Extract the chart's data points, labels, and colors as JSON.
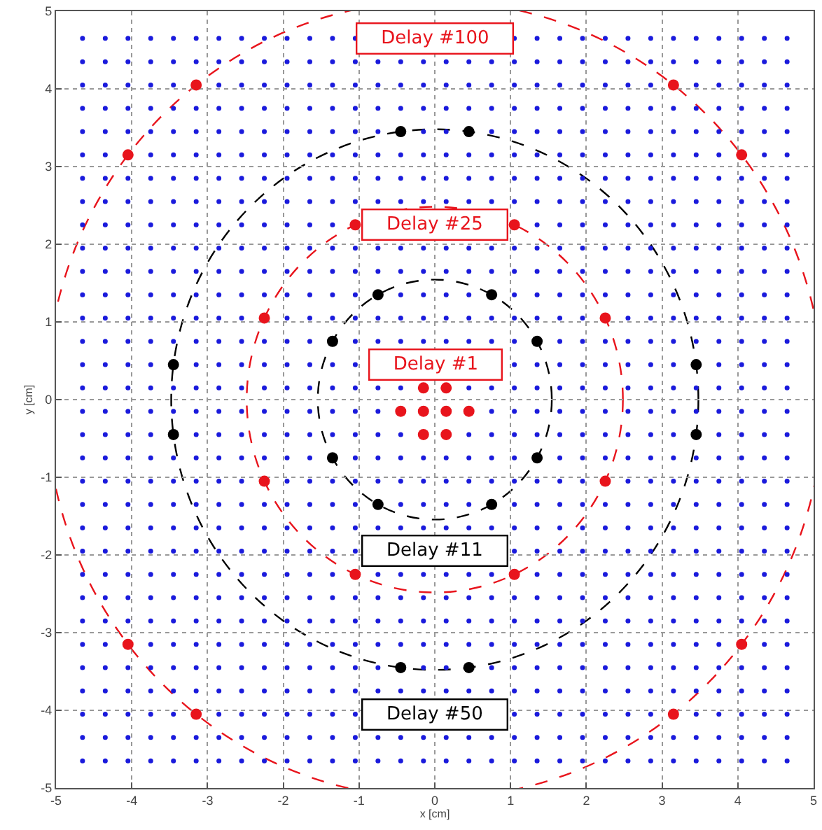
{
  "chart_data": {
    "type": "scatter",
    "xlabel": "x [cm]",
    "ylabel": "y [cm]",
    "xlim": [
      -5,
      5
    ],
    "ylim": [
      -5,
      5
    ],
    "xticks": [
      -5,
      -4,
      -3,
      -2,
      -1,
      0,
      1,
      2,
      3,
      4,
      5
    ],
    "yticks": [
      -5,
      -4,
      -3,
      -2,
      -1,
      0,
      1,
      2,
      3,
      4,
      5
    ],
    "grid": true,
    "marker": "circle",
    "annotations": [
      "Delay #1",
      "Delay #11",
      "Delay #25",
      "Delay #50",
      "Delay #100"
    ],
    "series": [
      {
        "type": "scatter",
        "color": "#1a1adc",
        "x": [
          -4.65,
          -4.35,
          -4.05,
          -3.75,
          -3.45,
          -3.15,
          -2.85,
          -2.55,
          -2.25,
          -1.95,
          -1.65,
          -1.35,
          -1.05,
          -0.75,
          -0.45,
          -0.15,
          0.15,
          0.45,
          0.75,
          1.05,
          1.35,
          1.65,
          1.95,
          2.25,
          2.55,
          2.85,
          3.15,
          3.45,
          3.75,
          4.05,
          4.35,
          4.65,
          -4.65,
          -4.35,
          -4.05,
          -3.75,
          -3.45,
          -3.15,
          -2.85,
          -2.55,
          -2.25,
          -1.95,
          -1.65,
          -1.35,
          -1.05,
          -0.75,
          -0.45,
          -0.15,
          0.15,
          0.45,
          0.75,
          1.05,
          1.35,
          1.65,
          1.95,
          2.25,
          2.55,
          2.85,
          3.15,
          3.45,
          3.75,
          4.05,
          4.35,
          4.65,
          -4.65,
          -4.35,
          -4.05,
          -3.75,
          -3.45,
          -3.15,
          -2.85,
          -2.55,
          -2.25,
          -1.95,
          -1.65,
          -1.35,
          -1.05,
          -0.75,
          -0.45,
          -0.15,
          0.15,
          0.45,
          0.75,
          1.05,
          1.35,
          1.65,
          1.95,
          2.25,
          2.55,
          2.85,
          3.15,
          3.45,
          3.75,
          4.05,
          4.35,
          4.65,
          -4.65,
          -4.35,
          -4.05,
          -3.75,
          -3.45,
          -3.15,
          -2.85,
          -2.55,
          -2.25,
          -1.95,
          -1.65,
          -1.35,
          -1.05,
          -0.75,
          -0.45,
          -0.15,
          0.15,
          0.45,
          0.75,
          1.05,
          1.35,
          1.65,
          1.95,
          2.25,
          2.55,
          2.85,
          3.15,
          3.45,
          3.75,
          4.05,
          4.35,
          4.65,
          -4.65,
          -4.35,
          -4.05,
          -3.75,
          -3.45,
          -3.15,
          -2.85,
          -2.55,
          -2.25,
          -1.95,
          -1.65,
          -1.35,
          -1.05,
          -0.75,
          -0.45,
          -0.15,
          0.15,
          0.45,
          0.75,
          1.05,
          1.35,
          1.65,
          1.95,
          2.25,
          2.55,
          2.85,
          3.15,
          3.45,
          3.75,
          4.05,
          4.35,
          4.65,
          -4.65,
          -4.35,
          -4.05,
          -3.75,
          -3.45,
          -3.15,
          -2.85,
          -2.55,
          -2.25,
          -1.95,
          -1.65,
          -1.35,
          -1.05,
          -0.75,
          -0.45,
          -0.15,
          0.15,
          0.45,
          0.75,
          1.05,
          1.35,
          1.65,
          1.95,
          2.25,
          2.55,
          2.85,
          3.15,
          3.45,
          3.75,
          4.05,
          4.35,
          4.65,
          -4.65,
          -4.35,
          -4.05,
          -3.75,
          -3.45,
          -3.15,
          -2.85,
          -2.55,
          -2.25,
          -1.95,
          -1.65,
          -1.35,
          -1.05,
          -0.75,
          -0.45,
          -0.15,
          0.15,
          0.45,
          0.75,
          1.05,
          1.35,
          1.65,
          1.95,
          2.25,
          2.55,
          2.85,
          3.15,
          3.45,
          3.75,
          4.05,
          4.35,
          4.65,
          -4.65,
          -4.35,
          -4.05,
          -3.75,
          -3.45,
          -3.15,
          -2.85,
          -2.55,
          -2.25,
          -1.95,
          -1.65,
          -1.35,
          -1.05,
          -0.75,
          -0.45,
          -0.15,
          0.15,
          0.45,
          0.75,
          1.05,
          1.35,
          1.65,
          1.95,
          2.25,
          2.55,
          2.85,
          3.15,
          3.45,
          3.75,
          4.05,
          4.35,
          4.65,
          -4.65,
          -4.35,
          -4.05,
          -3.75,
          -3.45,
          -3.15,
          -2.85,
          -2.55,
          -2.25,
          -1.95,
          -1.65,
          -1.35,
          -1.05,
          -0.75,
          -0.45,
          -0.15,
          0.15,
          0.45,
          0.75,
          1.05,
          1.35,
          1.65,
          1.95,
          2.25,
          2.55,
          2.85,
          3.15,
          3.45,
          3.75,
          4.05,
          4.35,
          4.65,
          -4.65,
          -4.35,
          -4.05,
          -3.75,
          -3.45,
          -3.15,
          -2.85,
          -2.55,
          -2.25,
          -1.95,
          -1.65,
          -1.35,
          -1.05,
          -0.75,
          -0.45,
          -0.15,
          0.15,
          0.45,
          0.75,
          1.05,
          1.35,
          1.65,
          1.95,
          2.25,
          2.55,
          2.85,
          3.15,
          3.45,
          3.75,
          4.05,
          4.35,
          4.65,
          -4.65,
          -4.35,
          -4.05,
          -3.75,
          -3.45,
          -3.15,
          -2.85,
          -2.55,
          -2.25,
          -1.95,
          -1.65,
          -1.35,
          -1.05,
          -0.75,
          -0.45,
          -0.15,
          0.15,
          0.45,
          0.75,
          1.05,
          1.35,
          1.65,
          1.95,
          2.25,
          2.55,
          2.85,
          3.15,
          3.45,
          3.75,
          4.05,
          4.35,
          4.65,
          -4.65,
          -4.35,
          -4.05,
          -3.75,
          -3.45,
          -3.15,
          -2.85,
          -2.55,
          -2.25,
          -1.95,
          -1.65,
          -1.35,
          -1.05,
          -0.75,
          -0.45,
          -0.15,
          0.15,
          0.45,
          0.75,
          1.05,
          1.35,
          1.65,
          1.95,
          2.25,
          2.55,
          2.85,
          3.15,
          3.45,
          3.75,
          4.05,
          4.35,
          4.65,
          -4.65,
          -4.35,
          -4.05,
          -3.75,
          -3.45,
          -3.15,
          -2.85,
          -2.55,
          -2.25,
          -1.95,
          -1.65,
          -1.35,
          -1.05,
          -0.75,
          -0.45,
          -0.15,
          0.15,
          0.45,
          0.75,
          1.05,
          1.35,
          1.65,
          1.95,
          2.25,
          2.55,
          2.85,
          3.15,
          3.45,
          3.75,
          4.05,
          4.35,
          4.65,
          -4.65,
          -4.35,
          -4.05,
          -3.75,
          -3.45,
          -3.15,
          -2.85,
          -2.55,
          -2.25,
          -1.95,
          -1.65,
          -1.35,
          -1.05,
          -0.75,
          -0.45,
          -0.15,
          0.15,
          0.45,
          0.75,
          1.05,
          1.35,
          1.65,
          1.95,
          2.25,
          2.55,
          2.85,
          3.15,
          3.45,
          3.75,
          4.05,
          4.35,
          4.65,
          -4.65,
          -4.35,
          -4.05,
          -3.75,
          -3.45,
          -3.15,
          -2.85,
          -2.55,
          -2.25,
          -1.95,
          -1.65,
          -1.35,
          -1.05,
          -0.75,
          -0.45,
          -0.15,
          0.15,
          0.45,
          0.75,
          1.05,
          1.35,
          1.65,
          1.95,
          2.25,
          2.55,
          2.85,
          3.15,
          3.45,
          3.75,
          4.05,
          4.35,
          4.65,
          -4.65,
          -4.35,
          -4.05,
          -3.75,
          -3.45,
          -3.15,
          -2.85,
          -2.55,
          -2.25,
          -1.95,
          -1.65,
          -1.35,
          -1.05,
          -0.75,
          -0.45,
          -0.15,
          0.15,
          0.45,
          0.75,
          1.05,
          1.35,
          1.65,
          1.95,
          2.25,
          2.55,
          2.85,
          3.15,
          3.45,
          3.75,
          4.05,
          4.35,
          4.65,
          -4.65,
          -4.35,
          -4.05,
          -3.75,
          -3.45,
          -3.15,
          -2.85,
          -2.55,
          -2.25,
          -1.95,
          -1.65,
          -1.35,
          -1.05,
          -0.75,
          -0.45,
          -0.15,
          0.15,
          0.45,
          0.75,
          1.05,
          1.35,
          1.65,
          1.95,
          2.25,
          2.55,
          2.85,
          3.15,
          3.45,
          3.75,
          4.05,
          4.35,
          4.65,
          -4.65,
          -4.35,
          -4.05,
          -3.75,
          -3.45,
          -3.15,
          -2.85,
          -2.55,
          -2.25,
          -1.95,
          -1.65,
          -1.35,
          -1.05,
          -0.75,
          -0.45,
          -0.15,
          0.15,
          0.45,
          0.75,
          1.05,
          1.35,
          1.65,
          1.95,
          2.25,
          2.55,
          2.85,
          3.15,
          3.45,
          3.75,
          4.05,
          4.35,
          4.65,
          -4.65,
          -4.35,
          -4.05,
          -3.75,
          -3.45,
          -3.15,
          -2.85,
          -2.55,
          -2.25,
          -1.95,
          -1.65,
          -1.35,
          -1.05,
          -0.75,
          -0.45,
          -0.15,
          0.15,
          0.45,
          0.75,
          1.05,
          1.35,
          1.65,
          1.95,
          2.25,
          2.55,
          2.85,
          3.15,
          3.45,
          3.75,
          4.05,
          4.35,
          4.65,
          -4.65,
          -4.35,
          -4.05,
          -3.75,
          -3.45,
          -3.15,
          -2.85,
          -2.55,
          -2.25,
          -1.95,
          -1.65,
          -1.35,
          -1.05,
          -0.75,
          -0.45,
          -0.15,
          0.15,
          0.45,
          0.75,
          1.05,
          1.35,
          1.65,
          1.95,
          2.25,
          2.55,
          2.85,
          3.15,
          3.45,
          3.75,
          4.05,
          4.35,
          4.65,
          -4.65,
          -4.35,
          -4.05,
          -3.75,
          -3.45,
          -3.15,
          -2.85,
          -2.55,
          -2.25,
          -1.95,
          -1.65,
          -1.35,
          -1.05,
          -0.75,
          -0.45,
          -0.15,
          0.15,
          0.45,
          0.75,
          1.05,
          1.35,
          1.65,
          1.95,
          2.25,
          2.55,
          2.85,
          3.15,
          3.45,
          3.75,
          4.05,
          4.35,
          4.65,
          -4.65,
          -4.35,
          -4.05,
          -3.75,
          -3.45,
          -3.15,
          -2.85,
          -2.55,
          -2.25,
          -1.95,
          -1.65,
          -1.35,
          -1.05,
          -0.75,
          -0.45,
          -0.15,
          0.15,
          0.45,
          0.75,
          1.05,
          1.35,
          1.65,
          1.95,
          2.25,
          2.55,
          2.85,
          3.15,
          3.45,
          3.75,
          4.05,
          4.35,
          4.65,
          -4.65,
          -4.35,
          -4.05,
          -3.75,
          -3.45,
          -3.15,
          -2.85,
          -2.55,
          -2.25,
          -1.95,
          -1.65,
          -1.35,
          -1.05,
          -0.75,
          -0.45,
          -0.15,
          0.15,
          0.45,
          0.75,
          1.05,
          1.35,
          1.65,
          1.95,
          2.25,
          2.55,
          2.85,
          3.15,
          3.45,
          3.75,
          4.05,
          4.35,
          4.65,
          -4.65,
          -4.35,
          -4.05,
          -3.75,
          -3.45,
          -3.15,
          -2.85,
          -2.55,
          -2.25,
          -1.95,
          -1.65,
          -1.35,
          -1.05,
          -0.75,
          -0.45,
          -0.15,
          0.15,
          0.45,
          0.75,
          1.05,
          1.35,
          1.65,
          1.95,
          2.25,
          2.55,
          2.85,
          3.15,
          3.45,
          3.75,
          4.05,
          4.35,
          4.65,
          -4.65,
          -4.35,
          -4.05,
          -3.75,
          -3.45,
          -3.15,
          -2.85,
          -2.55,
          -2.25,
          -1.95,
          -1.65,
          -1.35,
          -1.05,
          -0.75,
          -0.45,
          -0.15,
          0.15,
          0.45,
          0.75,
          1.05,
          1.35,
          1.65,
          1.95,
          2.25,
          2.55,
          2.85,
          3.15,
          3.45,
          3.75,
          4.05,
          4.35,
          4.65,
          -4.65,
          -4.35,
          -4.05,
          -3.75,
          -3.45,
          -3.15,
          -2.85,
          -2.55,
          -2.25,
          -1.95,
          -1.65,
          -1.35,
          -1.05,
          -0.75,
          -0.45,
          -0.15,
          0.15,
          0.45,
          0.75,
          1.05,
          1.35,
          1.65,
          1.95,
          2.25,
          2.55,
          2.85,
          3.15,
          3.45,
          3.75,
          4.05,
          4.35,
          4.65,
          -4.65,
          -4.35,
          -4.05,
          -3.75,
          -3.45,
          -3.15,
          -2.85,
          -2.55,
          -2.25,
          -1.95,
          -1.65,
          -1.35,
          -1.05,
          -0.75,
          -0.45,
          -0.15,
          0.15,
          0.45,
          0.75,
          1.05,
          1.35,
          1.65,
          1.95,
          2.25,
          2.55,
          2.85,
          3.15,
          3.45,
          3.75,
          4.05,
          4.35,
          4.65,
          -4.65,
          -4.35,
          -4.05,
          -3.75,
          -3.45,
          -3.15,
          -2.85,
          -2.55,
          -2.25,
          -1.95,
          -1.65,
          -1.35,
          -1.05,
          -0.75,
          -0.45,
          -0.15,
          0.15,
          0.45,
          0.75,
          1.05,
          1.35,
          1.65,
          1.95,
          2.25,
          2.55,
          2.85,
          3.15,
          3.45,
          3.75,
          4.05,
          4.35,
          4.65,
          -4.65,
          -4.35,
          -4.05,
          -3.75,
          -3.45,
          -3.15,
          -2.85,
          -2.55,
          -2.25,
          -1.95,
          -1.65,
          -1.35,
          -1.05,
          -0.75,
          -0.45,
          -0.15,
          0.15,
          0.45,
          0.75,
          1.05,
          1.35,
          1.65,
          1.95,
          2.25,
          2.55,
          2.85,
          3.15,
          3.45,
          3.75,
          4.05,
          4.35,
          4.65,
          -4.65,
          -4.35,
          -4.05,
          -3.75,
          -3.45,
          -3.15,
          -2.85,
          -2.55,
          -2.25,
          -1.95,
          -1.65,
          -1.35,
          -1.05,
          -0.75,
          -0.45,
          -0.15,
          0.15,
          0.45,
          0.75,
          1.05,
          1.35,
          1.65,
          1.95,
          2.25,
          2.55,
          2.85,
          3.15,
          3.45,
          3.75,
          4.05,
          4.35,
          4.65,
          -4.65,
          -4.35,
          -4.05,
          -3.75,
          -3.45,
          -3.15,
          -2.85,
          -2.55,
          -2.25,
          -1.95,
          -1.65,
          -1.35,
          -1.05,
          -0.75,
          -0.45,
          -0.15,
          0.15,
          0.45,
          0.75,
          1.05,
          1.35,
          1.65,
          1.95,
          2.25,
          2.55,
          2.85,
          3.15,
          3.45,
          3.75,
          4.05,
          4.35,
          4.65,
          -4.65,
          -4.35,
          -4.05,
          -3.75,
          -3.45,
          -3.15,
          -2.85,
          -2.55,
          -2.25,
          -1.95,
          -1.65,
          -1.35,
          -1.05,
          -0.75,
          -0.45,
          -0.15,
          0.15,
          0.45,
          0.75,
          1.05,
          1.35,
          1.65,
          1.95,
          2.25,
          2.55,
          2.85,
          3.15,
          3.45,
          3.75,
          4.05,
          4.35,
          4.65
        ],
        "values": [
          -4.65,
          -4.65,
          -4.65,
          -4.65,
          -4.65,
          -4.65,
          -4.65,
          -4.65,
          -4.65,
          -4.65,
          -4.65,
          -4.65,
          -4.65,
          -4.65,
          -4.65,
          -4.65,
          -4.65,
          -4.65,
          -4.65,
          -4.65,
          -4.65,
          -4.65,
          -4.65,
          -4.65,
          -4.65,
          -4.65,
          -4.65,
          -4.65,
          -4.65,
          -4.65,
          -4.65,
          -4.65,
          -4.35,
          -4.35,
          -4.35,
          -4.35,
          -4.35,
          -4.35,
          -4.35,
          -4.35,
          -4.35,
          -4.35,
          -4.35,
          -4.35,
          -4.35,
          -4.35,
          -4.35,
          -4.35,
          -4.35,
          -4.35,
          -4.35,
          -4.35,
          -4.35,
          -4.35,
          -4.35,
          -4.35,
          -4.35,
          -4.35,
          -4.35,
          -4.35,
          -4.35,
          -4.35,
          -4.35,
          -4.35,
          -4.05,
          -4.05,
          -4.05,
          -4.05,
          -4.05,
          null,
          -4.05,
          -4.05,
          -4.05,
          -4.05,
          -4.05,
          -4.05,
          -4.05,
          null,
          null,
          null,
          null,
          null,
          null,
          -4.05,
          -4.05,
          -4.05,
          -4.05,
          -4.05,
          -4.05,
          -4.05,
          null,
          -4.05,
          -4.05,
          -4.05,
          -4.05,
          -4.05,
          -3.75,
          -3.75,
          -3.75,
          -3.75,
          -3.75,
          -3.75,
          -3.75,
          -3.75,
          -3.75,
          -3.75,
          -3.75,
          -3.75,
          -3.75,
          -3.75,
          -3.75,
          -3.75,
          -3.75,
          -3.75,
          -3.75,
          -3.75,
          -3.75,
          -3.75,
          -3.75,
          -3.75,
          -3.75,
          -3.75,
          -3.75,
          -3.75,
          -3.75,
          -3.75,
          -3.75,
          -3.75,
          -3.45,
          -3.45,
          -3.45,
          -3.45,
          -3.45,
          -3.45,
          -3.45,
          -3.45,
          -3.45,
          -3.45,
          -3.45,
          -3.45,
          -3.45,
          -3.45,
          null,
          -3.45,
          -3.45,
          null,
          -3.45,
          -3.45,
          -3.45,
          -3.45,
          -3.45,
          -3.45,
          -3.45,
          -3.45,
          -3.45,
          -3.45,
          -3.45,
          -3.45,
          -3.45,
          -3.45,
          -3.15,
          -3.15,
          null,
          -3.15,
          -3.15,
          -3.15,
          -3.15,
          -3.15,
          -3.15,
          -3.15,
          -3.15,
          -3.15,
          -3.15,
          -3.15,
          -3.15,
          -3.15,
          -3.15,
          -3.15,
          -3.15,
          -3.15,
          -3.15,
          -3.15,
          -3.15,
          -3.15,
          -3.15,
          -3.15,
          -3.15,
          -3.15,
          -3.15,
          null,
          -3.15,
          -3.15,
          -2.85,
          -2.85,
          -2.85,
          -2.85,
          -2.85,
          -2.85,
          -2.85,
          -2.85,
          -2.85,
          -2.85,
          -2.85,
          -2.85,
          -2.85,
          -2.85,
          -2.85,
          -2.85,
          -2.85,
          -2.85,
          -2.85,
          -2.85,
          -2.85,
          -2.85,
          -2.85,
          -2.85,
          -2.85,
          -2.85,
          -2.85,
          -2.85,
          -2.85,
          -2.85,
          -2.85,
          -2.85,
          -2.55,
          -2.55,
          -2.55,
          -2.55,
          -2.55,
          -2.55,
          -2.55,
          -2.55,
          -2.55,
          -2.55,
          -2.55,
          -2.55,
          -2.55,
          -2.55,
          -2.55,
          -2.55,
          -2.55,
          -2.55,
          -2.55,
          -2.55,
          -2.55,
          -2.55,
          -2.55,
          -2.55,
          -2.55,
          -2.55,
          -2.55,
          -2.55,
          -2.55,
          -2.55,
          -2.55,
          -2.55,
          -2.25,
          -2.25,
          -2.25,
          -2.25,
          -2.25,
          -2.25,
          -2.25,
          -2.25,
          -2.25,
          -2.25,
          -2.25,
          -2.25,
          null,
          -2.25,
          -2.25,
          -2.25,
          -2.25,
          -2.25,
          -2.25,
          null,
          -2.25,
          -2.25,
          -2.25,
          -2.25,
          -2.25,
          -2.25,
          -2.25,
          -2.25,
          -2.25,
          -2.25,
          -2.25,
          -2.25,
          -1.95,
          -1.95,
          -1.95,
          -1.95,
          -1.95,
          -1.95,
          -1.95,
          -1.95,
          -1.95,
          -1.95,
          -1.95,
          -1.95,
          -1.95,
          null,
          null,
          null,
          null,
          null,
          null,
          -1.95,
          -1.95,
          -1.95,
          -1.95,
          -1.95,
          -1.95,
          -1.95,
          -1.95,
          -1.95,
          -1.95,
          -1.95,
          -1.95,
          -1.95,
          -1.65,
          -1.65,
          -1.65,
          -1.65,
          -1.65,
          -1.65,
          -1.65,
          -1.65,
          -1.65,
          -1.65,
          -1.65,
          -1.65,
          -1.65,
          -1.65,
          -1.65,
          -1.65,
          -1.65,
          -1.65,
          -1.65,
          -1.65,
          -1.65,
          -1.65,
          -1.65,
          -1.65,
          -1.65,
          -1.65,
          -1.65,
          -1.65,
          -1.65,
          -1.65,
          -1.65,
          -1.65,
          -1.35,
          -1.35,
          -1.35,
          -1.35,
          -1.35,
          -1.35,
          -1.35,
          -1.35,
          -1.35,
          -1.35,
          -1.35,
          -1.35,
          -1.35,
          null,
          -1.35,
          -1.35,
          -1.35,
          -1.35,
          null,
          -1.35,
          -1.35,
          -1.35,
          -1.35,
          -1.35,
          -1.35,
          -1.35,
          -1.35,
          -1.35,
          -1.35,
          -1.35,
          -1.35,
          -1.35,
          -1.05,
          -1.05,
          -1.05,
          -1.05,
          -1.05,
          -1.05,
          -1.05,
          -1.05,
          null,
          -1.05,
          -1.05,
          -1.05,
          -1.05,
          -1.05,
          -1.05,
          -1.05,
          -1.05,
          -1.05,
          -1.05,
          -1.05,
          -1.05,
          -1.05,
          -1.05,
          null,
          -1.05,
          -1.05,
          -1.05,
          -1.05,
          -1.05,
          -1.05,
          -1.05,
          -1.05,
          -0.75,
          -0.75,
          -0.75,
          -0.75,
          -0.75,
          -0.75,
          -0.75,
          -0.75,
          -0.75,
          -0.75,
          -0.75,
          null,
          -0.75,
          -0.75,
          -0.75,
          -0.75,
          -0.75,
          -0.75,
          -0.75,
          -0.75,
          null,
          -0.75,
          -0.75,
          -0.75,
          -0.75,
          -0.75,
          -0.75,
          -0.75,
          -0.75,
          -0.75,
          -0.75,
          -0.75,
          -0.45,
          -0.45,
          -0.45,
          -0.45,
          null,
          -0.45,
          -0.45,
          -0.45,
          -0.45,
          -0.45,
          -0.45,
          -0.45,
          -0.45,
          -0.45,
          -0.45,
          null,
          null,
          -0.45,
          -0.45,
          -0.45,
          -0.45,
          -0.45,
          -0.45,
          -0.45,
          -0.45,
          -0.45,
          -0.45,
          null,
          -0.45,
          -0.45,
          -0.45,
          -0.45,
          -0.15,
          -0.15,
          -0.15,
          -0.15,
          -0.15,
          -0.15,
          -0.15,
          -0.15,
          -0.15,
          -0.15,
          -0.15,
          -0.15,
          -0.15,
          -0.15,
          null,
          null,
          null,
          null,
          -0.15,
          -0.15,
          -0.15,
          -0.15,
          -0.15,
          -0.15,
          -0.15,
          -0.15,
          -0.15,
          -0.15,
          -0.15,
          -0.15,
          -0.15,
          -0.15,
          0.15,
          0.15,
          0.15,
          0.15,
          0.15,
          0.15,
          0.15,
          0.15,
          0.15,
          0.15,
          0.15,
          0.15,
          0.15,
          0.15,
          0.15,
          null,
          null,
          0.15,
          0.15,
          0.15,
          0.15,
          0.15,
          0.15,
          0.15,
          0.15,
          0.15,
          0.15,
          0.15,
          0.15,
          0.15,
          0.15,
          0.15,
          0.45,
          0.45,
          0.45,
          0.45,
          null,
          0.45,
          0.45,
          0.45,
          0.45,
          0.45,
          0.45,
          0.45,
          0.45,
          null,
          null,
          null,
          null,
          null,
          null,
          0.45,
          0.45,
          0.45,
          0.45,
          0.45,
          0.45,
          0.45,
          0.45,
          null,
          0.45,
          0.45,
          0.45,
          0.45,
          0.75,
          0.75,
          0.75,
          0.75,
          0.75,
          0.75,
          0.75,
          0.75,
          0.75,
          0.75,
          0.75,
          null,
          0.75,
          0.75,
          0.75,
          0.75,
          0.75,
          0.75,
          0.75,
          0.75,
          null,
          0.75,
          0.75,
          0.75,
          0.75,
          0.75,
          0.75,
          0.75,
          0.75,
          0.75,
          0.75,
          0.75,
          1.05,
          1.05,
          1.05,
          1.05,
          1.05,
          1.05,
          1.05,
          1.05,
          null,
          1.05,
          1.05,
          1.05,
          1.05,
          1.05,
          1.05,
          1.05,
          1.05,
          1.05,
          1.05,
          1.05,
          1.05,
          1.05,
          1.05,
          null,
          1.05,
          1.05,
          1.05,
          1.05,
          1.05,
          1.05,
          1.05,
          1.05,
          1.35,
          1.35,
          1.35,
          1.35,
          1.35,
          1.35,
          1.35,
          1.35,
          1.35,
          1.35,
          1.35,
          1.35,
          1.35,
          null,
          1.35,
          1.35,
          1.35,
          1.35,
          null,
          1.35,
          1.35,
          1.35,
          1.35,
          1.35,
          1.35,
          1.35,
          1.35,
          1.35,
          1.35,
          1.35,
          1.35,
          1.35,
          1.65,
          1.65,
          1.65,
          1.65,
          1.65,
          1.65,
          1.65,
          1.65,
          1.65,
          1.65,
          1.65,
          1.65,
          1.65,
          1.65,
          1.65,
          1.65,
          1.65,
          1.65,
          1.65,
          1.65,
          1.65,
          1.65,
          1.65,
          1.65,
          1.65,
          1.65,
          1.65,
          1.65,
          1.65,
          1.65,
          1.65,
          1.65,
          1.95,
          1.95,
          1.95,
          1.95,
          1.95,
          1.95,
          1.95,
          1.95,
          1.95,
          1.95,
          1.95,
          1.95,
          1.95,
          1.95,
          1.95,
          1.95,
          1.95,
          1.95,
          1.95,
          1.95,
          1.95,
          1.95,
          1.95,
          1.95,
          1.95,
          1.95,
          1.95,
          1.95,
          1.95,
          1.95,
          1.95,
          1.95,
          2.25,
          2.25,
          2.25,
          2.25,
          2.25,
          2.25,
          2.25,
          2.25,
          2.25,
          2.25,
          2.25,
          2.25,
          null,
          null,
          null,
          null,
          null,
          null,
          null,
          null,
          2.25,
          2.25,
          2.25,
          2.25,
          2.25,
          2.25,
          2.25,
          2.25,
          2.25,
          2.25,
          2.25,
          2.25,
          2.55,
          2.55,
          2.55,
          2.55,
          2.55,
          2.55,
          2.55,
          2.55,
          2.55,
          2.55,
          2.55,
          2.55,
          2.55,
          2.55,
          2.55,
          2.55,
          2.55,
          2.55,
          2.55,
          2.55,
          2.55,
          2.55,
          2.55,
          2.55,
          2.55,
          2.55,
          2.55,
          2.55,
          2.55,
          2.55,
          2.55,
          2.55,
          2.85,
          2.85,
          2.85,
          2.85,
          2.85,
          2.85,
          2.85,
          2.85,
          2.85,
          2.85,
          2.85,
          2.85,
          2.85,
          2.85,
          2.85,
          2.85,
          2.85,
          2.85,
          2.85,
          2.85,
          2.85,
          2.85,
          2.85,
          2.85,
          2.85,
          2.85,
          2.85,
          2.85,
          2.85,
          2.85,
          2.85,
          2.85,
          3.15,
          3.15,
          null,
          3.15,
          3.15,
          3.15,
          3.15,
          3.15,
          3.15,
          3.15,
          3.15,
          3.15,
          3.15,
          3.15,
          3.15,
          3.15,
          3.15,
          3.15,
          3.15,
          3.15,
          3.15,
          3.15,
          3.15,
          3.15,
          3.15,
          3.15,
          3.15,
          3.15,
          3.15,
          null,
          3.15,
          3.15,
          3.45,
          3.45,
          3.45,
          3.45,
          3.45,
          3.45,
          3.45,
          3.45,
          3.45,
          3.45,
          3.45,
          3.45,
          3.45,
          3.45,
          null,
          3.45,
          3.45,
          null,
          3.45,
          3.45,
          3.45,
          3.45,
          3.45,
          3.45,
          3.45,
          3.45,
          3.45,
          3.45,
          3.45,
          3.45,
          3.45,
          3.45,
          3.75,
          3.75,
          3.75,
          3.75,
          3.75,
          3.75,
          3.75,
          3.75,
          3.75,
          3.75,
          3.75,
          3.75,
          3.75,
          3.75,
          3.75,
          3.75,
          3.75,
          3.75,
          3.75,
          3.75,
          3.75,
          3.75,
          3.75,
          3.75,
          3.75,
          3.75,
          3.75,
          3.75,
          3.75,
          3.75,
          3.75,
          3.75,
          4.05,
          4.05,
          4.05,
          4.05,
          4.05,
          null,
          4.05,
          4.05,
          4.05,
          4.05,
          4.05,
          4.05,
          4.05,
          4.05,
          4.05,
          4.05,
          4.05,
          4.05,
          4.05,
          4.05,
          4.05,
          4.05,
          4.05,
          4.05,
          4.05,
          4.05,
          null,
          4.05,
          4.05,
          4.05,
          4.05,
          4.05,
          4.35,
          4.35,
          4.35,
          4.35,
          4.35,
          4.35,
          4.35,
          4.35,
          4.35,
          4.35,
          4.35,
          4.35,
          4.35,
          4.35,
          4.35,
          4.35,
          4.35,
          4.35,
          4.35,
          4.35,
          4.35,
          4.35,
          4.35,
          4.35,
          4.35,
          4.35,
          4.35,
          4.35,
          4.35,
          4.35,
          4.35,
          4.35,
          4.65,
          4.65,
          4.65,
          4.65,
          4.65,
          4.65,
          4.65,
          4.65,
          4.65,
          4.65,
          4.65,
          4.65,
          4.65,
          null,
          null,
          null,
          null,
          null,
          null,
          4.65,
          4.65,
          4.65,
          4.65,
          4.65,
          4.65,
          4.65,
          4.65,
          4.65,
          4.65,
          4.65,
          4.65,
          4.65
        ]
      },
      {
        "type": "scatter",
        "color": "#e8141c",
        "x": [
          -0.15,
          0.15,
          -0.45,
          -0.15,
          0.15,
          0.45,
          -0.15,
          0.15
        ],
        "values": [
          0.15,
          0.15,
          -0.15,
          -0.15,
          -0.15,
          -0.15,
          -0.45,
          -0.45
        ]
      },
      {
        "type": "scatter",
        "color": "#000000",
        "x": [
          0.75,
          1.35,
          1.35,
          0.75,
          -0.75,
          -1.35,
          -1.35,
          -0.75
        ],
        "values": [
          1.35,
          0.75,
          -0.75,
          -1.35,
          -1.35,
          -0.75,
          0.75,
          1.35
        ]
      },
      {
        "type": "scatter",
        "color": "#e8141c",
        "x": [
          1.05,
          2.25,
          2.25,
          1.05,
          -1.05,
          -2.25,
          -2.25,
          -1.05
        ],
        "values": [
          2.25,
          1.05,
          -1.05,
          -2.25,
          -2.25,
          -1.05,
          1.05,
          2.25
        ]
      },
      {
        "type": "scatter",
        "color": "#000000",
        "x": [
          0.45,
          3.45,
          3.45,
          0.45,
          -0.45,
          -3.45,
          -3.45,
          -0.45
        ],
        "values": [
          3.45,
          0.45,
          -0.45,
          -3.45,
          -3.45,
          -0.45,
          0.45,
          3.45
        ]
      },
      {
        "type": "scatter",
        "color": "#e8141c",
        "x": [
          3.15,
          4.05,
          4.05,
          3.15,
          -3.15,
          -4.05,
          -4.05,
          -3.15
        ],
        "values": [
          4.05,
          3.15,
          -3.15,
          -4.05,
          -4.05,
          -3.15,
          3.15,
          4.05
        ]
      }
    ]
  }
}
